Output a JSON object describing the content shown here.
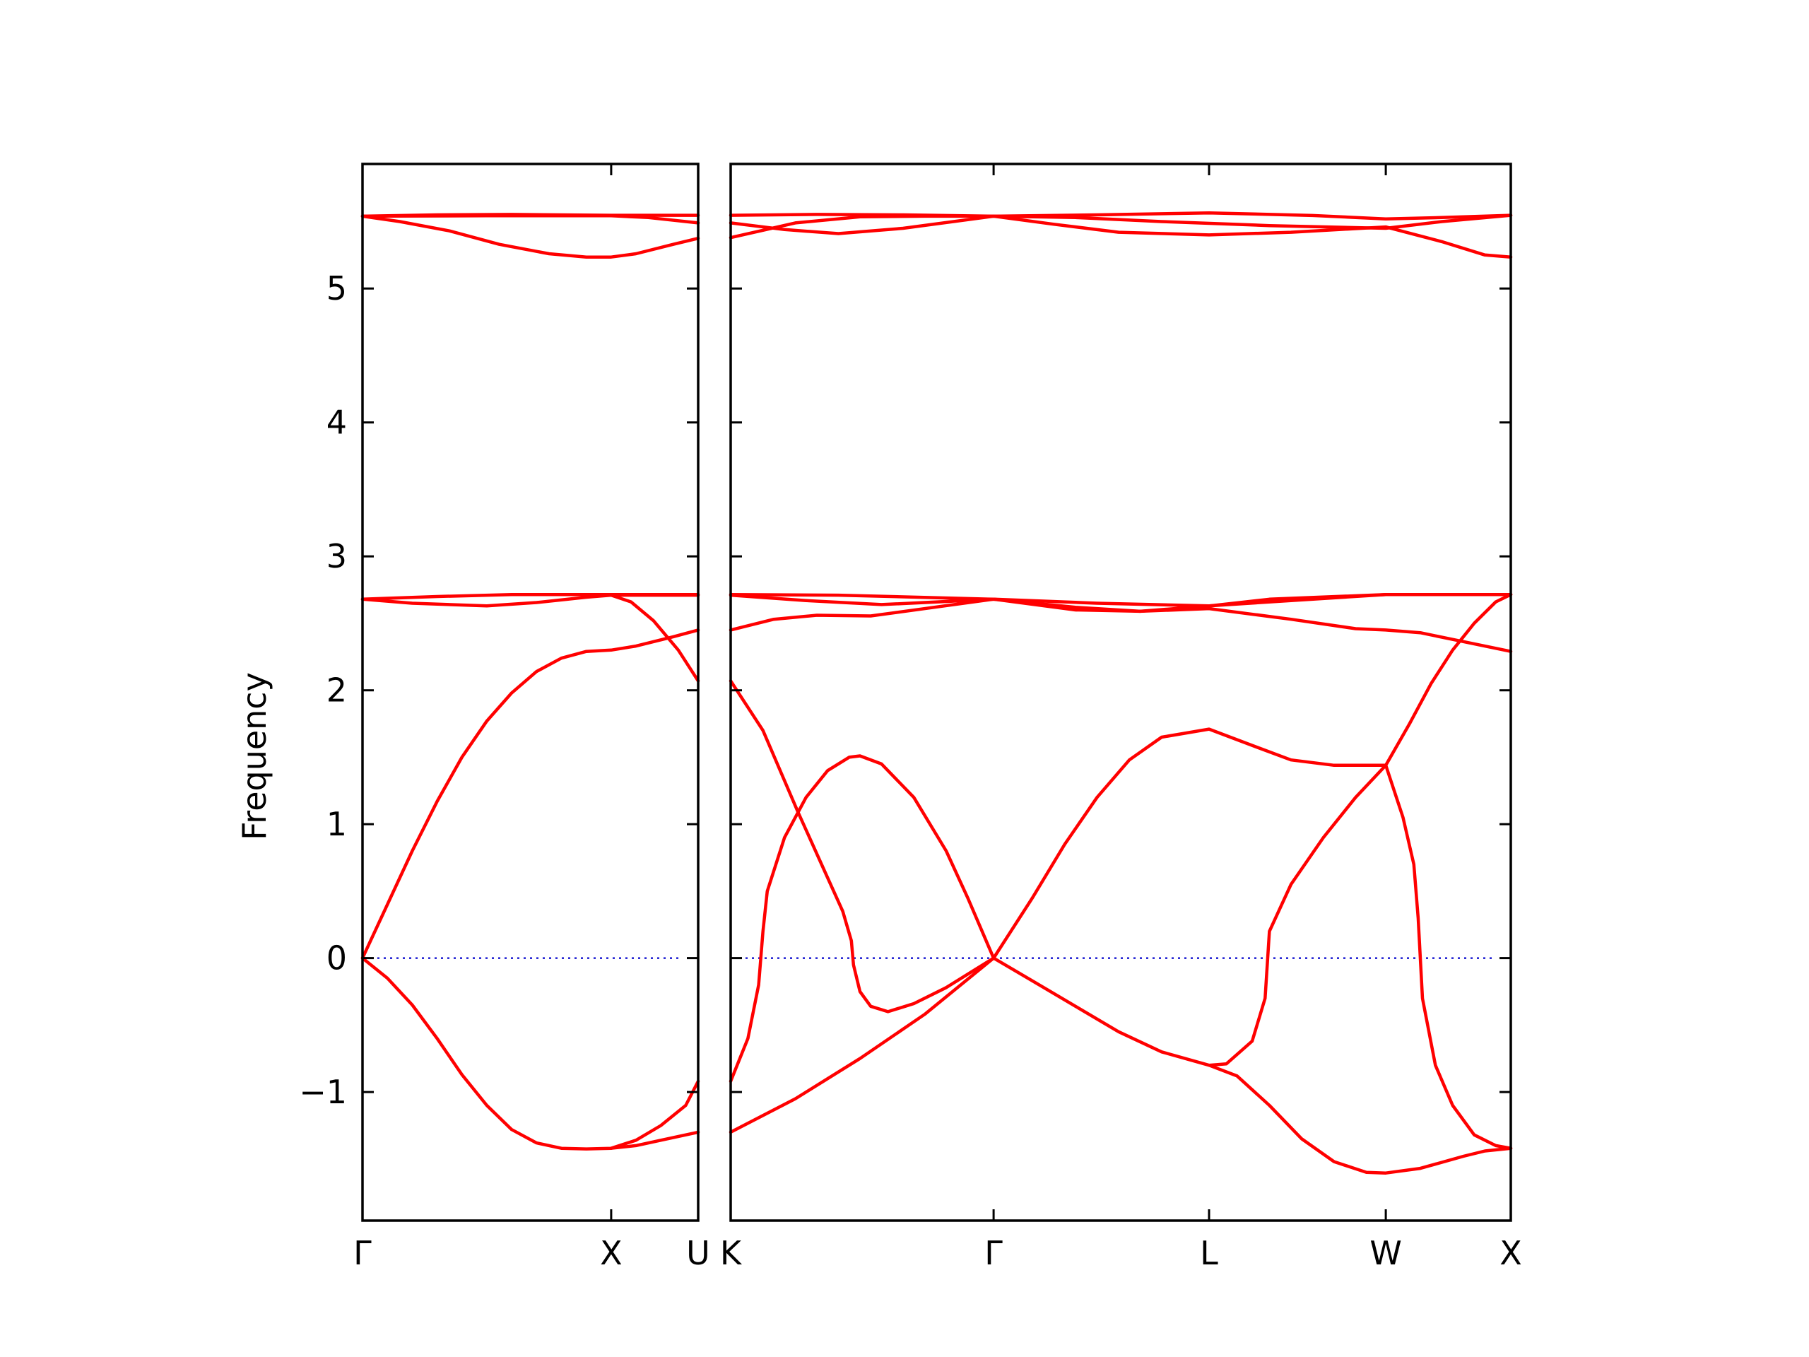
{
  "chart_data": {
    "type": "line",
    "ylabel": "Frequency",
    "ylim": [
      -1.96,
      5.93
    ],
    "yticks": [
      -1,
      0,
      1,
      2,
      3,
      4,
      5
    ],
    "ytick_labels": [
      "−1",
      "0",
      "1",
      "2",
      "3",
      "4",
      "5"
    ],
    "grid": false,
    "legend": "none",
    "colors": {
      "bands": "#ff0000",
      "zero_line": "#0000cc",
      "axes": "#000000"
    },
    "panels": [
      {
        "name": "left",
        "xlim": [
          0,
          1.35
        ],
        "xticks": [
          {
            "pos": 0,
            "label": "Γ"
          },
          {
            "pos": 1.0,
            "label": "X"
          },
          {
            "pos": 1.35,
            "label": "U"
          }
        ],
        "bands": [
          [
            [
              0,
              5.54
            ],
            [
              0.3,
              5.55
            ],
            [
              0.6,
              5.553
            ],
            [
              1.0,
              5.547
            ],
            [
              1.35,
              5.547
            ]
          ],
          [
            [
              0,
              5.54
            ],
            [
              0.15,
              5.5
            ],
            [
              0.35,
              5.43
            ],
            [
              0.55,
              5.33
            ],
            [
              0.75,
              5.26
            ],
            [
              0.9,
              5.235
            ],
            [
              1.0,
              5.235
            ],
            [
              1.1,
              5.26
            ],
            [
              1.25,
              5.33
            ],
            [
              1.35,
              5.375
            ]
          ],
          [
            [
              0,
              5.54
            ],
            [
              0.5,
              5.543
            ],
            [
              1.0,
              5.543
            ],
            [
              1.15,
              5.53
            ],
            [
              1.35,
              5.49
            ]
          ],
          [
            [
              0,
              2.68
            ],
            [
              0.3,
              2.7
            ],
            [
              0.6,
              2.715
            ],
            [
              1.0,
              2.715
            ],
            [
              1.35,
              2.715
            ]
          ],
          [
            [
              0,
              2.68
            ],
            [
              0.2,
              2.65
            ],
            [
              0.5,
              2.63
            ],
            [
              0.7,
              2.655
            ],
            [
              0.9,
              2.695
            ],
            [
              1.0,
              2.71
            ],
            [
              1.35,
              2.71
            ]
          ],
          [
            [
              0,
              0
            ],
            [
              0.1,
              0.4
            ],
            [
              0.2,
              0.8
            ],
            [
              0.3,
              1.17
            ],
            [
              0.4,
              1.5
            ],
            [
              0.5,
              1.77
            ],
            [
              0.6,
              1.98
            ],
            [
              0.7,
              2.14
            ],
            [
              0.8,
              2.24
            ],
            [
              0.9,
              2.29
            ],
            [
              1.0,
              2.3
            ],
            [
              1.1,
              2.33
            ],
            [
              1.25,
              2.4
            ],
            [
              1.35,
              2.45
            ]
          ],
          [
            [
              1.0,
              2.71
            ],
            [
              1.08,
              2.66
            ],
            [
              1.17,
              2.52
            ],
            [
              1.27,
              2.3
            ],
            [
              1.35,
              2.07
            ]
          ],
          [
            [
              0,
              0
            ],
            [
              0.1,
              -0.15
            ],
            [
              0.2,
              -0.35
            ],
            [
              0.3,
              -0.6
            ],
            [
              0.4,
              -0.87
            ],
            [
              0.5,
              -1.1
            ],
            [
              0.6,
              -1.28
            ],
            [
              0.7,
              -1.38
            ],
            [
              0.8,
              -1.42
            ],
            [
              0.9,
              -1.425
            ],
            [
              1.0,
              -1.42
            ],
            [
              1.1,
              -1.4
            ],
            [
              1.2,
              -1.36
            ],
            [
              1.35,
              -1.3
            ]
          ],
          [
            [
              1.0,
              -1.42
            ],
            [
              1.1,
              -1.36
            ],
            [
              1.2,
              -1.25
            ],
            [
              1.3,
              -1.1
            ],
            [
              1.35,
              -0.92
            ]
          ]
        ]
      },
      {
        "name": "right",
        "xlim": [
          0,
          3.62
        ],
        "xticks": [
          {
            "pos": 0,
            "label": "K"
          },
          {
            "pos": 1.22,
            "label": "Γ"
          },
          {
            "pos": 2.22,
            "label": "L"
          },
          {
            "pos": 3.04,
            "label": "W"
          },
          {
            "pos": 3.62,
            "label": "X"
          }
        ],
        "bands": [
          [
            [
              0,
              5.547
            ],
            [
              0.4,
              5.553
            ],
            [
              0.8,
              5.55
            ],
            [
              1.22,
              5.54
            ],
            [
              1.7,
              5.55
            ],
            [
              2.22,
              5.565
            ],
            [
              2.7,
              5.545
            ],
            [
              3.04,
              5.52
            ],
            [
              3.3,
              5.53
            ],
            [
              3.62,
              5.547
            ]
          ],
          [
            [
              0,
              5.38
            ],
            [
              0.3,
              5.49
            ],
            [
              0.6,
              5.535
            ],
            [
              0.9,
              5.54
            ],
            [
              1.22,
              5.54
            ],
            [
              1.6,
              5.53
            ],
            [
              2.0,
              5.5
            ],
            [
              2.5,
              5.47
            ],
            [
              3.04,
              5.45
            ],
            [
              3.3,
              5.5
            ],
            [
              3.62,
              5.547
            ]
          ],
          [
            [
              0,
              5.49
            ],
            [
              0.25,
              5.44
            ],
            [
              0.5,
              5.41
            ],
            [
              0.8,
              5.45
            ],
            [
              1.22,
              5.54
            ],
            [
              1.5,
              5.48
            ],
            [
              1.8,
              5.42
            ],
            [
              2.22,
              5.4
            ],
            [
              2.6,
              5.42
            ],
            [
              3.04,
              5.46
            ],
            [
              3.3,
              5.35
            ],
            [
              3.5,
              5.25
            ],
            [
              3.62,
              5.235
            ]
          ],
          [
            [
              0,
              2.715
            ],
            [
              0.5,
              2.71
            ],
            [
              1.22,
              2.68
            ],
            [
              1.7,
              2.65
            ],
            [
              2.22,
              2.63
            ],
            [
              2.5,
              2.68
            ],
            [
              3.04,
              2.715
            ],
            [
              3.62,
              2.715
            ]
          ],
          [
            [
              0,
              2.71
            ],
            [
              0.35,
              2.67
            ],
            [
              0.7,
              2.64
            ],
            [
              1.22,
              2.68
            ],
            [
              1.6,
              2.6
            ],
            [
              1.9,
              2.59
            ],
            [
              2.22,
              2.63
            ],
            [
              2.6,
              2.67
            ],
            [
              3.04,
              2.715
            ],
            [
              3.62,
              2.715
            ]
          ],
          [
            [
              0,
              2.45
            ],
            [
              0.2,
              2.53
            ],
            [
              0.4,
              2.56
            ],
            [
              0.65,
              2.555
            ],
            [
              1.22,
              2.68
            ],
            [
              1.6,
              2.62
            ],
            [
              1.9,
              2.59
            ],
            [
              2.22,
              2.61
            ],
            [
              2.6,
              2.53
            ],
            [
              2.9,
              2.46
            ],
            [
              3.04,
              2.45
            ],
            [
              3.2,
              2.43
            ],
            [
              3.35,
              2.38
            ],
            [
              3.62,
              2.29
            ]
          ],
          [
            [
              0,
              2.07
            ],
            [
              0.15,
              1.7
            ],
            [
              0.31,
              1.1
            ],
            [
              0.45,
              0.6
            ],
            [
              0.52,
              0.35
            ],
            [
              0.56,
              0.13
            ],
            [
              0.57,
              -0.05
            ],
            [
              0.6,
              -0.25
            ],
            [
              0.65,
              -0.36
            ],
            [
              0.73,
              -0.4
            ],
            [
              0.85,
              -0.34
            ],
            [
              1.0,
              -0.22
            ],
            [
              1.22,
              0
            ]
          ],
          [
            [
              0,
              -0.92
            ],
            [
              0.08,
              -0.6
            ],
            [
              0.13,
              -0.2
            ],
            [
              0.15,
              0.2
            ],
            [
              0.17,
              0.5
            ],
            [
              0.25,
              0.9
            ],
            [
              0.35,
              1.2
            ],
            [
              0.45,
              1.4
            ],
            [
              0.55,
              1.5
            ],
            [
              0.6,
              1.51
            ],
            [
              0.7,
              1.45
            ],
            [
              0.85,
              1.2
            ],
            [
              1.0,
              0.8
            ],
            [
              1.1,
              0.45
            ],
            [
              1.22,
              0
            ]
          ],
          [
            [
              0,
              -1.3
            ],
            [
              0.3,
              -1.05
            ],
            [
              0.6,
              -0.75
            ],
            [
              0.9,
              -0.42
            ],
            [
              1.22,
              0
            ]
          ],
          [
            [
              1.22,
              0
            ],
            [
              1.4,
              0.45
            ],
            [
              1.55,
              0.85
            ],
            [
              1.7,
              1.2
            ],
            [
              1.85,
              1.48
            ],
            [
              2.0,
              1.65
            ],
            [
              2.22,
              1.71
            ],
            [
              2.4,
              1.6
            ],
            [
              2.6,
              1.48
            ],
            [
              2.8,
              1.44
            ],
            [
              3.04,
              1.44
            ]
          ],
          [
            [
              1.22,
              0
            ],
            [
              1.4,
              -0.17
            ],
            [
              1.6,
              -0.36
            ],
            [
              1.8,
              -0.55
            ],
            [
              2.0,
              -0.7
            ],
            [
              2.22,
              -0.8
            ],
            [
              2.3,
              -0.79
            ],
            [
              2.42,
              -0.62
            ],
            [
              2.48,
              -0.3
            ],
            [
              2.5,
              0.2
            ],
            [
              2.6,
              0.55
            ],
            [
              2.75,
              0.9
            ],
            [
              2.9,
              1.2
            ],
            [
              3.04,
              1.44
            ]
          ],
          [
            [
              2.22,
              -0.8
            ],
            [
              2.35,
              -0.88
            ],
            [
              2.5,
              -1.1
            ],
            [
              2.65,
              -1.35
            ],
            [
              2.8,
              -1.52
            ],
            [
              2.95,
              -1.6
            ],
            [
              3.04,
              -1.605
            ],
            [
              3.2,
              -1.57
            ],
            [
              3.4,
              -1.48
            ],
            [
              3.5,
              -1.44
            ],
            [
              3.62,
              -1.42
            ]
          ],
          [
            [
              3.04,
              1.44
            ],
            [
              3.12,
              1.05
            ],
            [
              3.17,
              0.7
            ],
            [
              3.19,
              0.3
            ],
            [
              3.21,
              -0.3
            ],
            [
              3.27,
              -0.8
            ],
            [
              3.35,
              -1.1
            ],
            [
              3.45,
              -1.32
            ],
            [
              3.55,
              -1.4
            ],
            [
              3.62,
              -1.42
            ]
          ],
          [
            [
              3.04,
              1.44
            ],
            [
              3.15,
              1.75
            ],
            [
              3.25,
              2.05
            ],
            [
              3.35,
              2.3
            ],
            [
              3.45,
              2.5
            ],
            [
              3.55,
              2.66
            ],
            [
              3.62,
              2.715
            ]
          ]
        ]
      }
    ]
  }
}
